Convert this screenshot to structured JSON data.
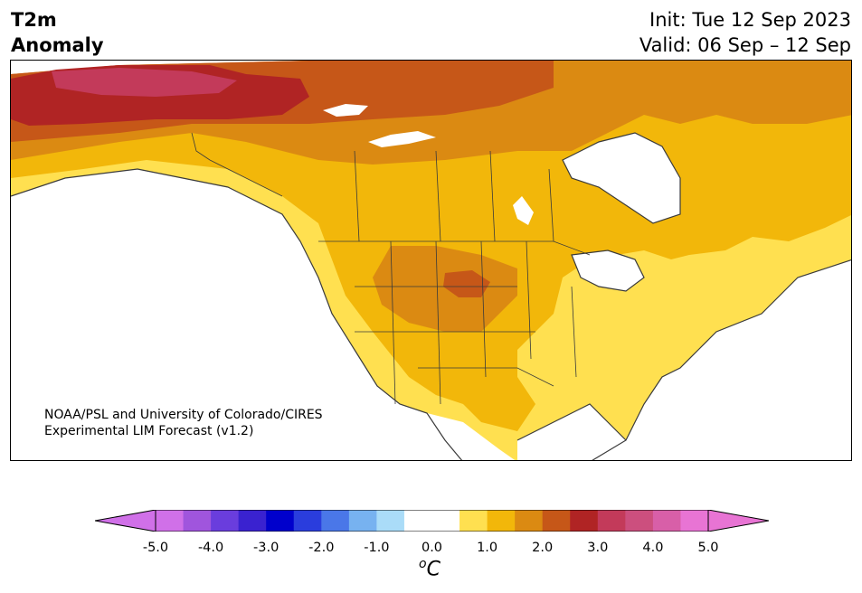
{
  "header": {
    "variable_line1": "T2m",
    "variable_line2": "Anomaly",
    "init": "Init: Tue 12 Sep 2023",
    "valid": "Valid: 06 Sep – 12 Sep"
  },
  "credit": {
    "line1": "NOAA/PSL and University of Colorado/CIRES",
    "line2": "Experimental LIM Forecast (v1.2)"
  },
  "colorbar": {
    "unit_base": "C",
    "unit_sup": "o",
    "ticks": [
      "-5.0",
      "-4.0",
      "-3.0",
      "-2.0",
      "-1.0",
      "0.0",
      "1.0",
      "2.0",
      "3.0",
      "4.0",
      "5.0"
    ],
    "colors": [
      "#d070e8",
      "#a055dd",
      "#6a3ddd",
      "#3a22d0",
      "#0000cc",
      "#2a3ddd",
      "#4a77e8",
      "#77b2f0",
      "#aadcf8",
      "#ffffff",
      "#ffffff",
      "#ffe050",
      "#f2b70a",
      "#db8a12",
      "#c65718",
      "#b02424",
      "#c33a5a",
      "#cc4f7e",
      "#d85fa8",
      "#e874d4"
    ],
    "under_color": "#d070e8",
    "over_color": "#e874d4"
  }
}
